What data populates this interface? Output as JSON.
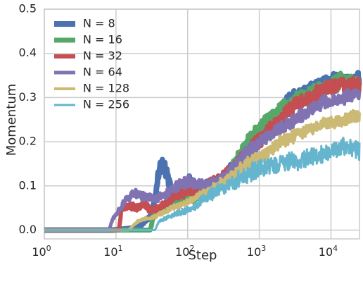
{
  "chart_data": {
    "type": "line",
    "xlabel": "Step",
    "ylabel": "Momentum",
    "xscale": "log",
    "xlim": [
      1,
      25000
    ],
    "ylim": [
      -0.02,
      0.5
    ],
    "grid": true,
    "legend_position": "top-left",
    "x_ticks": [
      1,
      10,
      100,
      1000,
      10000
    ],
    "x_tick_labels": [
      {
        "base": "10",
        "exp": "0"
      },
      {
        "base": "10",
        "exp": "1"
      },
      {
        "base": "10",
        "exp": "2"
      },
      {
        "base": "10",
        "exp": "3"
      },
      {
        "base": "10",
        "exp": "4"
      }
    ],
    "y_ticks": [
      0.0,
      0.1,
      0.2,
      0.3,
      0.4,
      0.5
    ],
    "y_tick_labels": [
      "0.0",
      "0.1",
      "0.2",
      "0.3",
      "0.4",
      "0.5"
    ],
    "colors": {
      "background": "#ffffff",
      "grid": "#cccccc",
      "text": "#262626"
    },
    "series": [
      {
        "name": "N = 8",
        "color": "#4c72b0",
        "noise": 0.012,
        "amp": 0.006,
        "points": [
          [
            1,
            0.0
          ],
          [
            9,
            0.0
          ],
          [
            20,
            0.005
          ],
          [
            30,
            0.03
          ],
          [
            36,
            0.08
          ],
          [
            40,
            0.14
          ],
          [
            45,
            0.15
          ],
          [
            50,
            0.13
          ],
          [
            60,
            0.09
          ],
          [
            75,
            0.07
          ],
          [
            90,
            0.1
          ],
          [
            110,
            0.11
          ],
          [
            150,
            0.09
          ],
          [
            200,
            0.1
          ],
          [
            300,
            0.11
          ],
          [
            500,
            0.15
          ],
          [
            800,
            0.2
          ],
          [
            1500,
            0.25
          ],
          [
            3000,
            0.3
          ],
          [
            6000,
            0.32
          ],
          [
            12000,
            0.34
          ],
          [
            25000,
            0.34
          ]
        ]
      },
      {
        "name": "N = 16",
        "color": "#55a868",
        "noise": 0.014,
        "amp": 0.005,
        "points": [
          [
            1,
            0.0
          ],
          [
            30,
            0.0
          ],
          [
            34,
            0.035
          ],
          [
            45,
            0.05
          ],
          [
            60,
            0.06
          ],
          [
            90,
            0.07
          ],
          [
            150,
            0.08
          ],
          [
            250,
            0.1
          ],
          [
            400,
            0.13
          ],
          [
            700,
            0.2
          ],
          [
            1200,
            0.24
          ],
          [
            2000,
            0.27
          ],
          [
            4000,
            0.3
          ],
          [
            8000,
            0.32
          ],
          [
            15000,
            0.34
          ],
          [
            25000,
            0.33
          ]
        ]
      },
      {
        "name": "N = 32",
        "color": "#c44e52",
        "noise": 0.014,
        "amp": 0.004,
        "points": [
          [
            1,
            0.0
          ],
          [
            11,
            0.0
          ],
          [
            12,
            0.05
          ],
          [
            15,
            0.055
          ],
          [
            20,
            0.05
          ],
          [
            25,
            0.06
          ],
          [
            30,
            0.045
          ],
          [
            40,
            0.05
          ],
          [
            50,
            0.06
          ],
          [
            70,
            0.08
          ],
          [
            100,
            0.09
          ],
          [
            200,
            0.1
          ],
          [
            400,
            0.13
          ],
          [
            700,
            0.18
          ],
          [
            1500,
            0.23
          ],
          [
            3000,
            0.28
          ],
          [
            6000,
            0.31
          ],
          [
            12000,
            0.33
          ],
          [
            25000,
            0.33
          ]
        ]
      },
      {
        "name": "N = 64",
        "color": "#8172b2",
        "noise": 0.012,
        "amp": 0.004,
        "points": [
          [
            1,
            0.0
          ],
          [
            8,
            0.0
          ],
          [
            9,
            0.025
          ],
          [
            14,
            0.07
          ],
          [
            18,
            0.085
          ],
          [
            25,
            0.075
          ],
          [
            35,
            0.07
          ],
          [
            50,
            0.08
          ],
          [
            70,
            0.1
          ],
          [
            100,
            0.11
          ],
          [
            200,
            0.1
          ],
          [
            350,
            0.12
          ],
          [
            600,
            0.17
          ],
          [
            1000,
            0.2
          ],
          [
            2000,
            0.23
          ],
          [
            4000,
            0.26
          ],
          [
            8000,
            0.29
          ],
          [
            15000,
            0.3
          ],
          [
            25000,
            0.31
          ]
        ]
      },
      {
        "name": "N = 128",
        "color": "#ccb974",
        "noise": 0.013,
        "amp": 0.003,
        "points": [
          [
            1,
            0.0
          ],
          [
            15,
            0.0
          ],
          [
            20,
            0.02
          ],
          [
            25,
            0.025
          ],
          [
            35,
            0.03
          ],
          [
            45,
            0.04
          ],
          [
            60,
            0.05
          ],
          [
            80,
            0.055
          ],
          [
            120,
            0.07
          ],
          [
            200,
            0.09
          ],
          [
            400,
            0.12
          ],
          [
            700,
            0.15
          ],
          [
            1200,
            0.17
          ],
          [
            2000,
            0.2
          ],
          [
            4000,
            0.22
          ],
          [
            8000,
            0.24
          ],
          [
            15000,
            0.25
          ],
          [
            25000,
            0.26
          ]
        ]
      },
      {
        "name": "N = 256",
        "color": "#64b5cd",
        "noise": 0.02,
        "amp": 0.003,
        "points": [
          [
            1,
            0.0
          ],
          [
            35,
            0.0
          ],
          [
            40,
            0.02
          ],
          [
            55,
            0.03
          ],
          [
            80,
            0.04
          ],
          [
            120,
            0.05
          ],
          [
            200,
            0.08
          ],
          [
            350,
            0.1
          ],
          [
            600,
            0.12
          ],
          [
            1000,
            0.14
          ],
          [
            2000,
            0.15
          ],
          [
            4000,
            0.16
          ],
          [
            8000,
            0.17
          ],
          [
            15000,
            0.19
          ],
          [
            25000,
            0.18
          ]
        ]
      }
    ]
  }
}
